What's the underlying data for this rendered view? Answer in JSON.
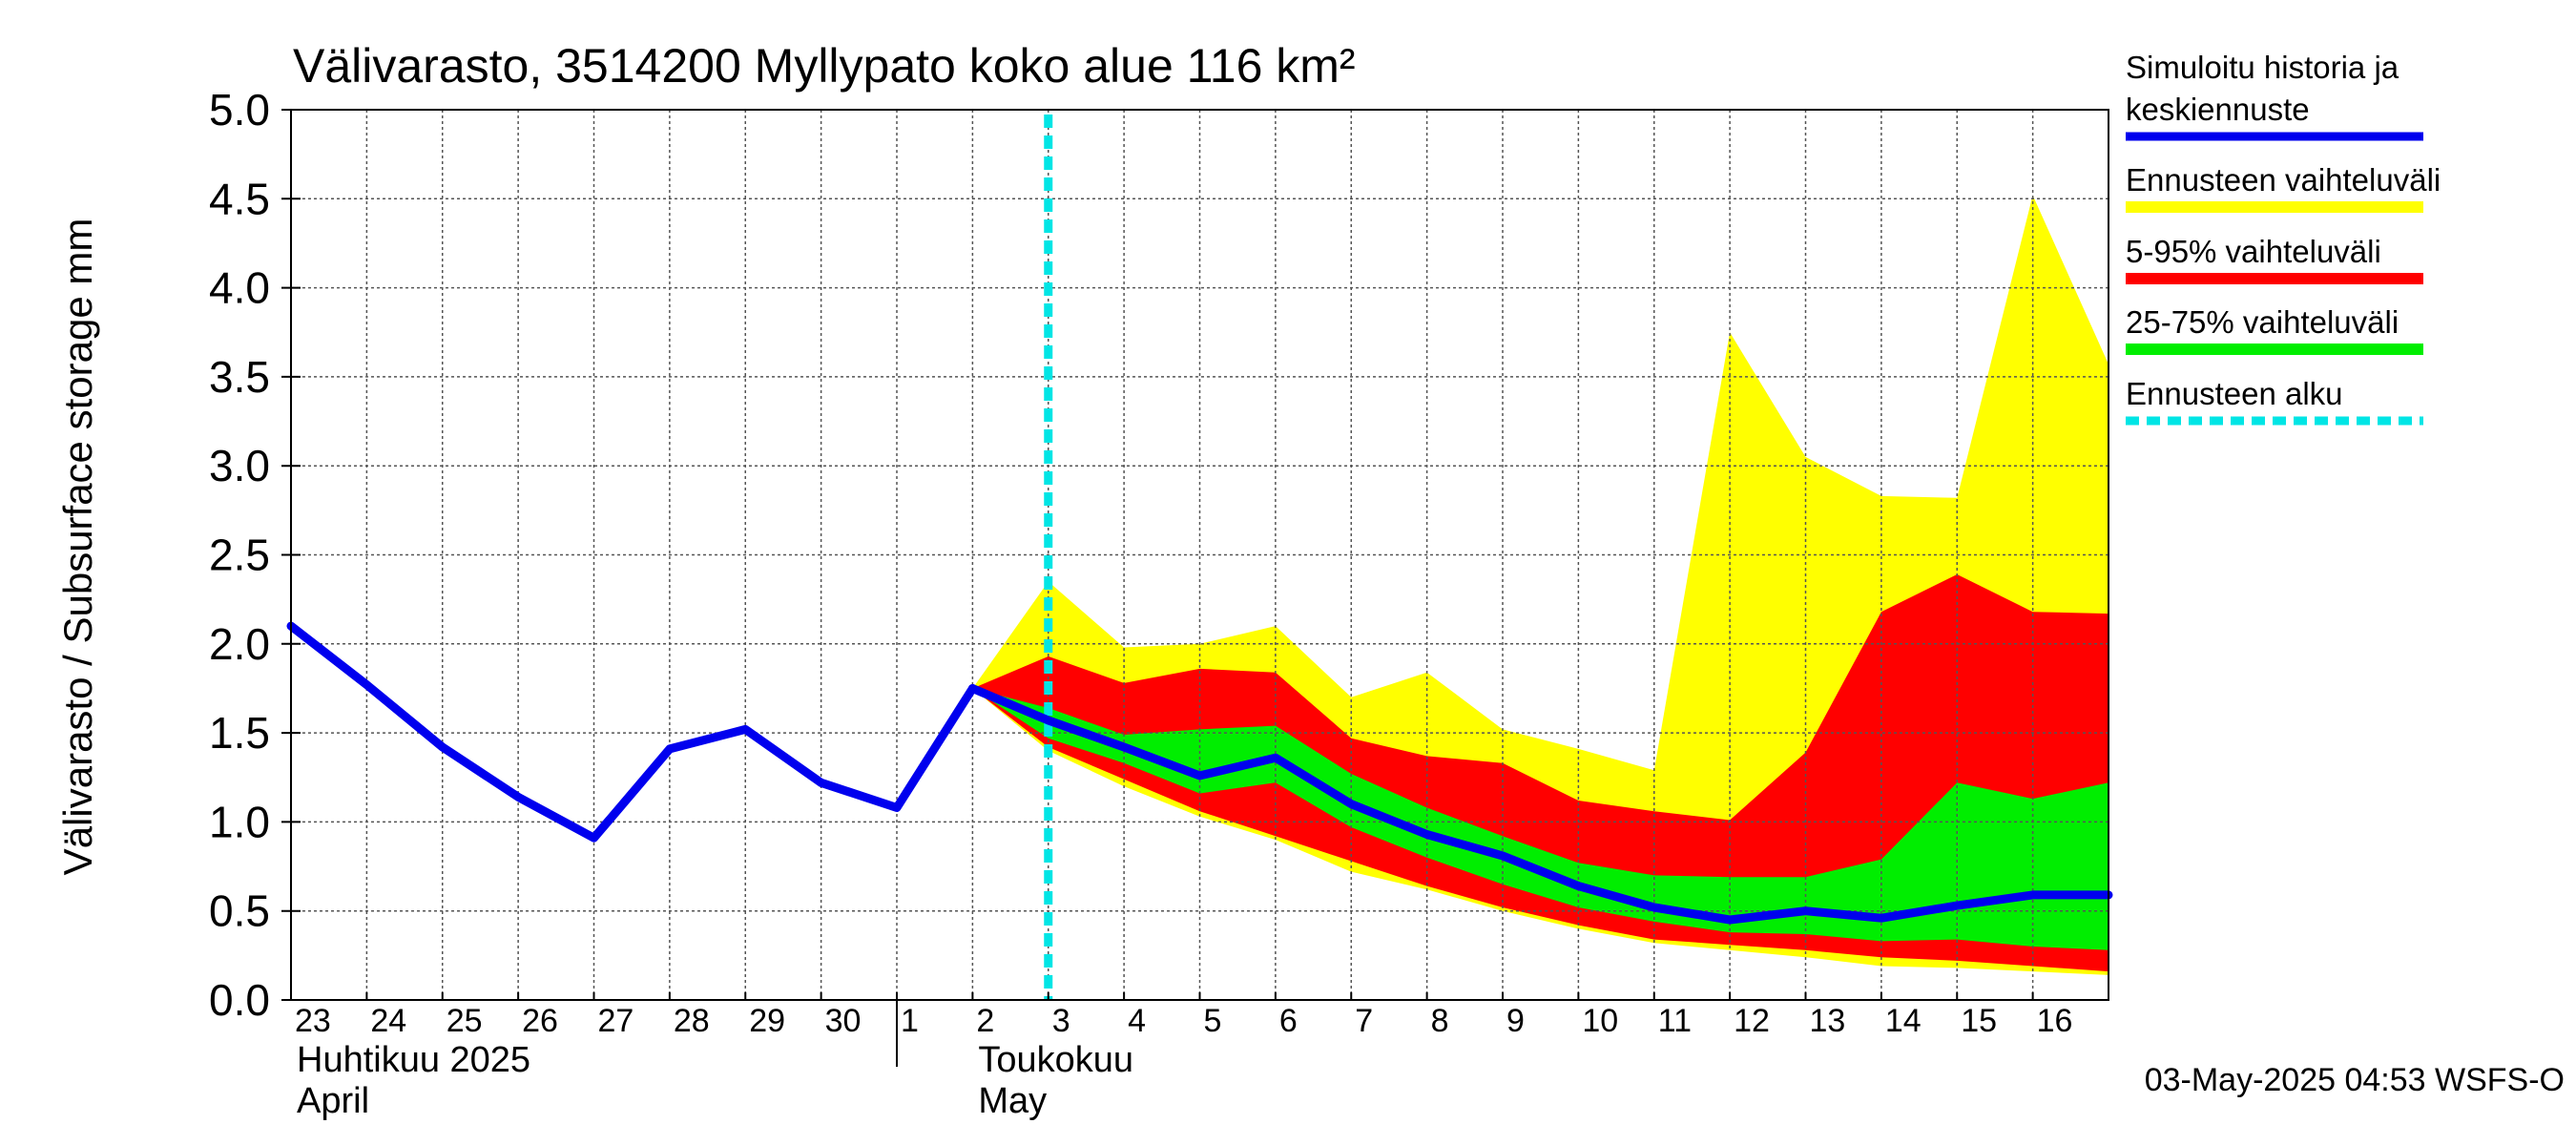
{
  "chart_data": {
    "type": "area",
    "title": "Välivarasto, 3514200 Myllypato koko alue 116 km²",
    "ylabel": "Välivarasto / Subsurface storage  mm",
    "ylim": [
      0,
      5
    ],
    "yticks": [
      "0.0",
      "0.5",
      "1.0",
      "1.5",
      "2.0",
      "2.5",
      "3.0",
      "3.5",
      "4.0",
      "4.5",
      "5.0"
    ],
    "x_start": "2025-04-23",
    "x_range_days": [
      0,
      24
    ],
    "day_labels": [
      "23",
      "24",
      "25",
      "26",
      "27",
      "28",
      "29",
      "30",
      "1",
      "2",
      "3",
      "4",
      "5",
      "6",
      "7",
      "8",
      "9",
      "10",
      "11",
      "12",
      "13",
      "14",
      "15",
      "16"
    ],
    "month_labels": [
      {
        "line1": "Huhtikuu  2025",
        "line2": "April",
        "day": 0
      },
      {
        "line1": "Toukokuu",
        "line2": "May",
        "day": 9
      }
    ],
    "month_separator_day": 8,
    "forecast_start_day": 10,
    "history": {
      "name": "Simuloitu historia ja keskiennuste",
      "x": [
        0,
        1,
        2,
        3,
        4,
        5,
        6,
        7,
        8,
        9
      ],
      "y": [
        2.1,
        1.77,
        1.42,
        1.14,
        0.91,
        1.41,
        1.52,
        1.22,
        1.08,
        1.75
      ]
    },
    "forecast_median": {
      "x": [
        9,
        10,
        11,
        12,
        13,
        14,
        15,
        16,
        17,
        18,
        19,
        20,
        21,
        22,
        23,
        24
      ],
      "y": [
        1.75,
        1.57,
        1.42,
        1.26,
        1.36,
        1.1,
        0.93,
        0.81,
        0.64,
        0.52,
        0.45,
        0.5,
        0.46,
        0.53,
        0.59,
        0.59
      ]
    },
    "bands": [
      {
        "name": "Ennusteen vaihteluväli",
        "color": "#ffff00",
        "x": [
          9,
          10,
          11,
          12,
          13,
          14,
          15,
          16,
          17,
          18,
          19,
          20,
          21,
          22,
          23,
          24
        ],
        "upper": [
          1.75,
          2.35,
          1.98,
          2.0,
          2.1,
          1.7,
          1.84,
          1.52,
          1.41,
          1.29,
          3.75,
          3.05,
          2.83,
          2.82,
          4.52,
          3.57
        ],
        "lower": [
          1.75,
          1.4,
          1.2,
          1.03,
          0.9,
          0.72,
          0.62,
          0.5,
          0.4,
          0.32,
          0.28,
          0.24,
          0.19,
          0.18,
          0.16,
          0.14
        ]
      },
      {
        "name": "5-95% vaihteluväli",
        "color": "#ff0000",
        "x": [
          9,
          10,
          11,
          12,
          13,
          14,
          15,
          16,
          17,
          18,
          19,
          20,
          21,
          22,
          23,
          24
        ],
        "upper": [
          1.75,
          1.93,
          1.78,
          1.86,
          1.84,
          1.47,
          1.37,
          1.33,
          1.12,
          1.06,
          1.01,
          1.39,
          2.18,
          2.39,
          2.18,
          2.17
        ],
        "lower": [
          1.75,
          1.42,
          1.24,
          1.06,
          0.92,
          0.78,
          0.64,
          0.52,
          0.42,
          0.34,
          0.31,
          0.28,
          0.24,
          0.22,
          0.19,
          0.16
        ]
      },
      {
        "name": "25-75% vaihteluväli",
        "color": "#00ee00",
        "x": [
          9,
          10,
          11,
          12,
          13,
          14,
          15,
          16,
          17,
          18,
          19,
          20,
          21,
          22,
          23,
          24
        ],
        "upper": [
          1.75,
          1.64,
          1.49,
          1.52,
          1.54,
          1.27,
          1.08,
          0.92,
          0.77,
          0.7,
          0.69,
          0.69,
          0.79,
          1.22,
          1.13,
          1.22
        ],
        "lower": [
          1.75,
          1.47,
          1.33,
          1.16,
          1.22,
          0.97,
          0.8,
          0.65,
          0.52,
          0.44,
          0.38,
          0.37,
          0.33,
          0.34,
          0.3,
          0.28
        ]
      }
    ],
    "legend": [
      {
        "label": "Simuloitu historia ja keskiennuste",
        "line1": "Simuloitu historia ja",
        "line2": "keskiennuste",
        "color": "#0000ee",
        "style": "solid"
      },
      {
        "label": "Ennusteen vaihteluväli",
        "line1": "Ennusteen vaihteluväli",
        "color": "#ffff00",
        "style": "solid"
      },
      {
        "label": "5-95% vaihteluväli",
        "line1": "5-95% vaihteluväli",
        "color": "#ff0000",
        "style": "solid"
      },
      {
        "label": "25-75% vaihteluväli",
        "line1": "25-75% vaihteluväli",
        "color": "#00ee00",
        "style": "solid"
      },
      {
        "label": "Ennusteen alku",
        "line1": "Ennusteen alku",
        "color": "#00e5e5",
        "style": "dashed"
      }
    ],
    "legend_position": "right",
    "footer": "03-May-2025 04:53 WSFS-O"
  }
}
